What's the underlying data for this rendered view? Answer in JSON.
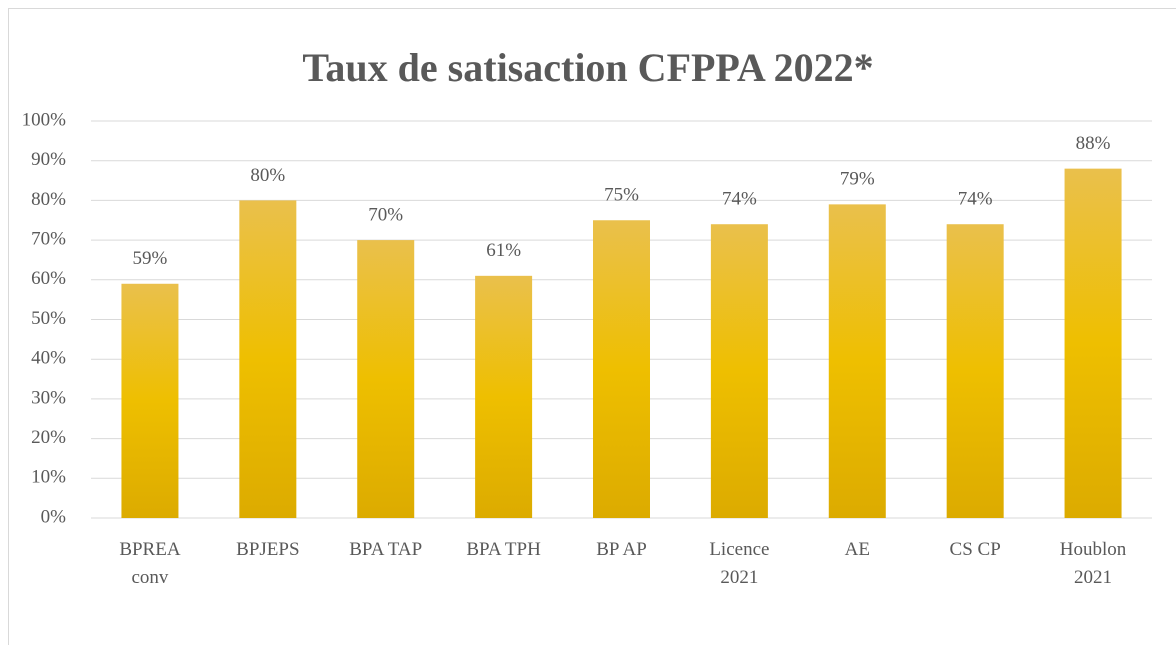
{
  "chart_data": {
    "type": "bar",
    "title": "Taux de satisaction CFPPA 2022*",
    "categories": [
      "BPREA\nconv",
      "BPJEPS",
      "BPA TAP",
      "BPA TPH",
      "BP AP",
      "Licence\n2021",
      "AE",
      "CS CP",
      "Houblon\n2021"
    ],
    "values": [
      59,
      80,
      70,
      61,
      75,
      74,
      79,
      74,
      88
    ],
    "value_labels": [
      "59%",
      "80%",
      "70%",
      "61%",
      "75%",
      "74%",
      "79%",
      "74%",
      "88%"
    ],
    "color": "#e6b400",
    "ylim": [
      0,
      100
    ],
    "yticks": [
      {
        "value": 0,
        "label": "0%"
      },
      {
        "value": 10,
        "label": "10%"
      },
      {
        "value": 20,
        "label": "20%"
      },
      {
        "value": 30,
        "label": "30%"
      },
      {
        "value": 40,
        "label": "40%"
      },
      {
        "value": 50,
        "label": "50%"
      },
      {
        "value": 60,
        "label": "60%"
      },
      {
        "value": 70,
        "label": "70%"
      },
      {
        "value": 80,
        "label": "80%"
      },
      {
        "value": 90,
        "label": "90%"
      },
      {
        "value": 100,
        "label": "100%"
      }
    ],
    "grid": true
  }
}
